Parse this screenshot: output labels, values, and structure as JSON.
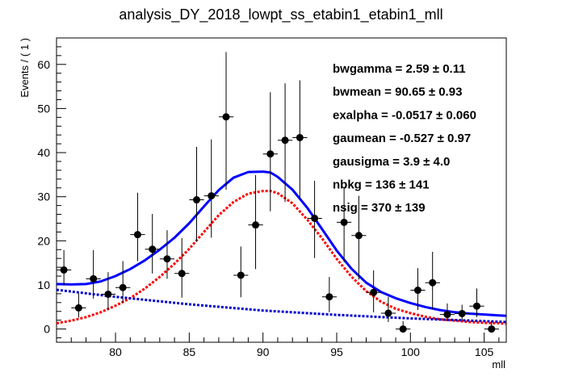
{
  "chart_data": {
    "type": "scatter",
    "title": "analysis_DY_2018_lowpt_ss_etabin1_etabin1_mll",
    "xlabel": "mll",
    "ylabel": "Events / ( 1 )",
    "xlim": [
      76,
      106.5
    ],
    "ylim": [
      -3,
      66
    ],
    "xticks": [
      80,
      85,
      90,
      95,
      100,
      105
    ],
    "yticks": [
      0,
      10,
      20,
      30,
      40,
      50,
      60
    ],
    "grid": false,
    "data_points": [
      {
        "x": 76.5,
        "y": 13.4,
        "yerr_lo": 3.5,
        "yerr_hi": 4.5
      },
      {
        "x": 77.5,
        "y": 4.8,
        "yerr_lo": 2.2,
        "yerr_hi": 3.3
      },
      {
        "x": 78.5,
        "y": 11.4,
        "yerr_lo": 4.5,
        "yerr_hi": 6.5
      },
      {
        "x": 79.5,
        "y": 7.9,
        "yerr_lo": 3.5,
        "yerr_hi": 5.0
      },
      {
        "x": 80.5,
        "y": 9.4,
        "yerr_lo": 3.5,
        "yerr_hi": 6.0
      },
      {
        "x": 81.5,
        "y": 21.4,
        "yerr_lo": 6.0,
        "yerr_hi": 9.5
      },
      {
        "x": 82.5,
        "y": 18.1,
        "yerr_lo": 5.5,
        "yerr_hi": 8.0
      },
      {
        "x": 83.5,
        "y": 15.9,
        "yerr_lo": 4.5,
        "yerr_hi": 6.5
      },
      {
        "x": 84.5,
        "y": 12.6,
        "yerr_lo": 5.5,
        "yerr_hi": 8.0
      },
      {
        "x": 85.5,
        "y": 29.3,
        "yerr_lo": 9.5,
        "yerr_hi": 12.0
      },
      {
        "x": 86.5,
        "y": 30.2,
        "yerr_lo": 9.5,
        "yerr_hi": 12.8
      },
      {
        "x": 87.5,
        "y": 48.1,
        "yerr_lo": 16.5,
        "yerr_hi": 14.7
      },
      {
        "x": 88.5,
        "y": 12.2,
        "yerr_lo": 5.0,
        "yerr_hi": 6.5
      },
      {
        "x": 89.5,
        "y": 23.6,
        "yerr_lo": 10.0,
        "yerr_hi": 11.3
      },
      {
        "x": 90.5,
        "y": 39.7,
        "yerr_lo": 13.0,
        "yerr_hi": 14.0
      },
      {
        "x": 91.5,
        "y": 42.8,
        "yerr_lo": 14.0,
        "yerr_hi": 12.9
      },
      {
        "x": 92.5,
        "y": 43.4,
        "yerr_lo": 14.0,
        "yerr_hi": 13.0
      },
      {
        "x": 93.5,
        "y": 25.1,
        "yerr_lo": 9.0,
        "yerr_hi": 8.5
      },
      {
        "x": 94.5,
        "y": 7.3,
        "yerr_lo": 3.5,
        "yerr_hi": 4.5
      },
      {
        "x": 95.5,
        "y": 24.2,
        "yerr_lo": 9.0,
        "yerr_hi": 8.0
      },
      {
        "x": 96.5,
        "y": 21.2,
        "yerr_lo": 10.0,
        "yerr_hi": 9.0
      },
      {
        "x": 97.5,
        "y": 8.3,
        "yerr_lo": 4.5,
        "yerr_hi": 5.0
      },
      {
        "x": 98.5,
        "y": 3.6,
        "yerr_lo": 2.0,
        "yerr_hi": 3.7
      },
      {
        "x": 99.5,
        "y": 0.0,
        "yerr_lo": 0.0,
        "yerr_hi": 1.8
      },
      {
        "x": 100.5,
        "y": 8.8,
        "yerr_lo": 4.5,
        "yerr_hi": 5.0
      },
      {
        "x": 101.5,
        "y": 10.5,
        "yerr_lo": 6.0,
        "yerr_hi": 7.0
      },
      {
        "x": 102.5,
        "y": 3.3,
        "yerr_lo": 1.5,
        "yerr_hi": 2.5
      },
      {
        "x": 103.5,
        "y": 3.5,
        "yerr_lo": 1.5,
        "yerr_hi": 2.0
      },
      {
        "x": 104.5,
        "y": 5.2,
        "yerr_lo": 2.5,
        "yerr_hi": 4.0
      },
      {
        "x": 105.5,
        "y": 0.0,
        "yerr_lo": 0.0,
        "yerr_hi": 1.8
      }
    ],
    "bin_half_width": 0.5,
    "curves": [
      {
        "style": "solid",
        "color": "#0000ff",
        "x": [
          76,
          77,
          78,
          79,
          80,
          81,
          82,
          83,
          84,
          85,
          86,
          87,
          88,
          89,
          90,
          90.5,
          91,
          92,
          93,
          94,
          95,
          96,
          97,
          98,
          99,
          100,
          101,
          102,
          103,
          104,
          105,
          106,
          106.5
        ],
        "y": [
          10.2,
          10.1,
          10.2,
          10.8,
          12.0,
          13.6,
          15.6,
          18.0,
          20.7,
          24.0,
          27.8,
          31.5,
          34.3,
          35.6,
          35.7,
          35.5,
          34.5,
          31.6,
          27.5,
          22.7,
          17.8,
          13.7,
          10.5,
          8.4,
          7.0,
          5.9,
          5.0,
          4.3,
          3.8,
          3.5,
          3.3,
          3.1,
          3.0
        ]
      },
      {
        "style": "dotted",
        "color": "#ff0000",
        "x": [
          76,
          77,
          78,
          79,
          80,
          81,
          82,
          83,
          84,
          85,
          86,
          87,
          88,
          89,
          90,
          90.5,
          91,
          92,
          93,
          94,
          95,
          96,
          97,
          98,
          99,
          100,
          101,
          102,
          103,
          104,
          105,
          106,
          106.5
        ],
        "y": [
          1.3,
          1.9,
          2.7,
          3.8,
          5.3,
          7.0,
          9.2,
          11.8,
          14.8,
          18.2,
          22.0,
          25.8,
          28.8,
          30.7,
          31.3,
          31.3,
          30.8,
          28.5,
          24.8,
          20.6,
          15.9,
          11.9,
          8.6,
          6.2,
          4.6,
          3.6,
          2.8,
          2.2,
          1.9,
          1.6,
          1.4,
          1.3,
          1.2
        ]
      },
      {
        "style": "dotted",
        "color": "#0000cc",
        "x": [
          76,
          80,
          85,
          90,
          95,
          100,
          105,
          106.5
        ],
        "y": [
          8.9,
          7.3,
          5.6,
          4.2,
          3.2,
          2.4,
          1.8,
          1.6
        ]
      }
    ]
  },
  "fit_params": [
    {
      "name": "bwgamma",
      "value": "2.59",
      "error": "0.11"
    },
    {
      "name": "bwmean",
      "value": "90.65",
      "error": "0.93"
    },
    {
      "name": "exalpha",
      "value": "-0.0517",
      "error": "0.060"
    },
    {
      "name": "gaumean",
      "value": "-0.527",
      "error": "0.97"
    },
    {
      "name": "gausigma",
      "value": "3.9",
      "error": "4.0"
    },
    {
      "name": "nbkg",
      "value": "136",
      "error": "141"
    },
    {
      "name": "nsig",
      "value": "370",
      "error": "139"
    }
  ]
}
